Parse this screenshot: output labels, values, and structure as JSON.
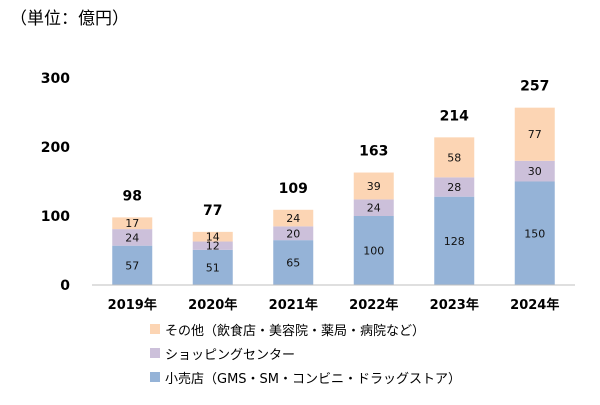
{
  "chart_data": {
    "type": "bar",
    "stacked": true,
    "unit_label": "（単位：億円）",
    "categories": [
      "2019年",
      "2020年",
      "2021年",
      "2022年",
      "2023年",
      "2024年"
    ],
    "series": [
      {
        "name": "小売店（GMS・SM・コンビニ・ドラッグストア）",
        "color": "#95b3d7",
        "values": [
          57,
          51,
          65,
          100,
          128,
          150
        ]
      },
      {
        "name": "ショッピングセンター",
        "color": "#ccc0da",
        "values": [
          24,
          12,
          20,
          24,
          28,
          30
        ]
      },
      {
        "name": "その他（飲食店・美容院・薬局・病院など）",
        "color": "#fcd5b4",
        "values": [
          17,
          14,
          24,
          39,
          58,
          77
        ]
      }
    ],
    "totals": [
      98,
      77,
      109,
      163,
      214,
      257
    ],
    "ylim": [
      0,
      300
    ],
    "yticks": [
      "0",
      "100",
      "200",
      "300"
    ],
    "grid": false,
    "legend_position": "bottom"
  }
}
